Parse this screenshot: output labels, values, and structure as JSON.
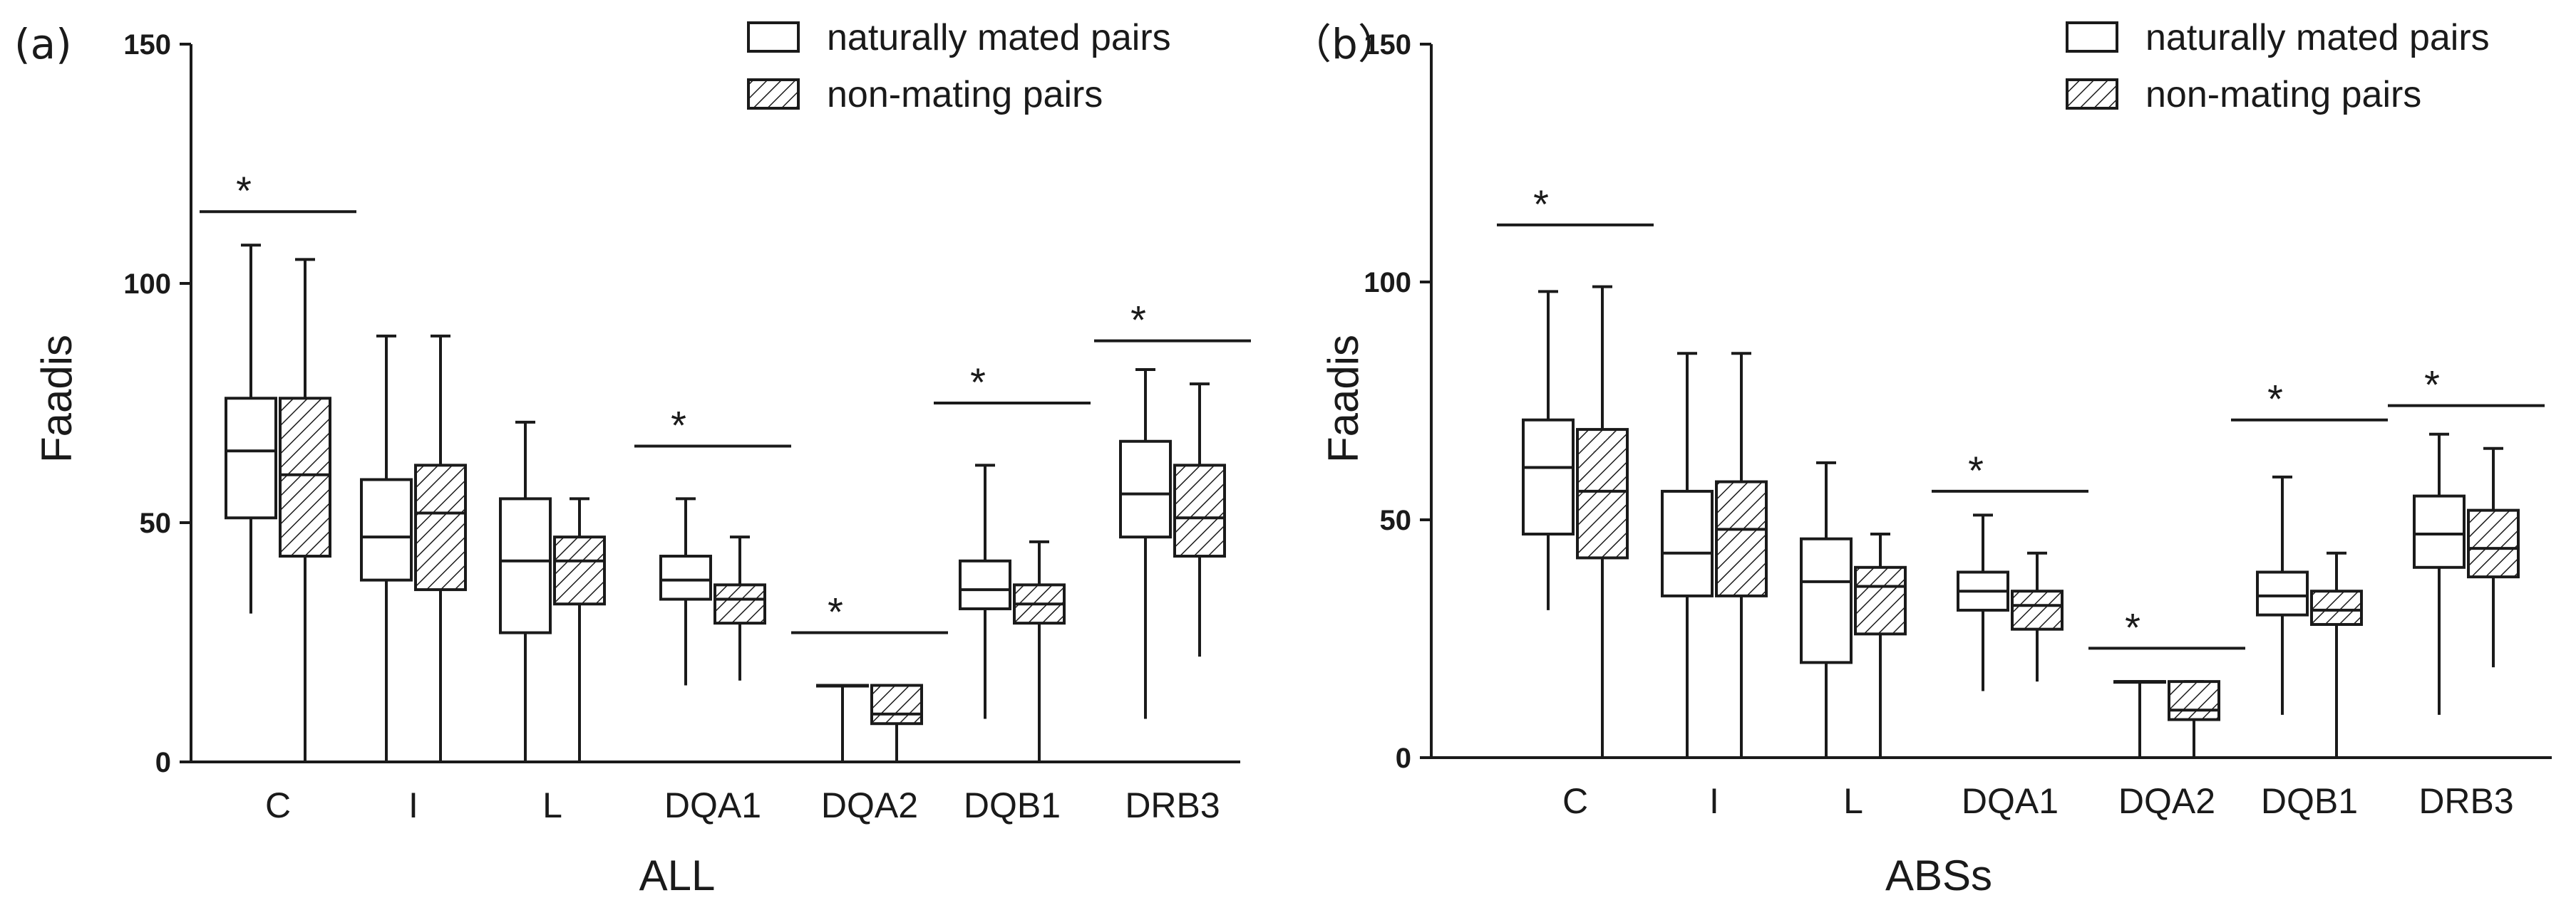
{
  "chart_data": [
    {
      "type": "boxplot",
      "panel_label": "(a)",
      "xlabel": "ALL",
      "ylabel": "Faadis",
      "ylim": [
        0,
        150
      ],
      "yticks": [
        0,
        50,
        100,
        150
      ],
      "categories": [
        "C",
        "I",
        "L",
        "DQA1",
        "DQA2",
        "DQB1",
        "DRB3"
      ],
      "legend": [
        "naturally mated pairs",
        "non-mating pairs"
      ],
      "significance": {
        "label": "*",
        "categories": [
          "C",
          "DQA1",
          "DQA2",
          "DQB1",
          "DRB3"
        ],
        "heights": [
          115,
          66,
          27,
          75,
          88
        ]
      },
      "series": [
        {
          "name": "naturally mated pairs",
          "pattern": "open",
          "boxes": [
            {
              "min": 31,
              "q1": 51,
              "median": 65,
              "q3": 76,
              "max": 108
            },
            {
              "min": 0,
              "q1": 38,
              "median": 47,
              "q3": 59,
              "max": 89
            },
            {
              "min": 0,
              "q1": 27,
              "median": 42,
              "q3": 55,
              "max": 71
            },
            {
              "min": 16,
              "q1": 34,
              "median": 38,
              "q3": 43,
              "max": 55
            },
            {
              "min": 0,
              "q1": 16,
              "median": 16,
              "q3": 16,
              "max": 16
            },
            {
              "min": 9,
              "q1": 32,
              "median": 36,
              "q3": 42,
              "max": 62
            },
            {
              "min": 9,
              "q1": 47,
              "median": 56,
              "q3": 67,
              "max": 82
            }
          ]
        },
        {
          "name": "non-mating pairs",
          "pattern": "hatched",
          "boxes": [
            {
              "min": 0,
              "q1": 43,
              "median": 60,
              "q3": 76,
              "max": 105
            },
            {
              "min": 0,
              "q1": 36,
              "median": 52,
              "q3": 62,
              "max": 89
            },
            {
              "min": 0,
              "q1": 33,
              "median": 42,
              "q3": 47,
              "max": 55
            },
            {
              "min": 17,
              "q1": 29,
              "median": 34,
              "q3": 37,
              "max": 47
            },
            {
              "min": 0,
              "q1": 8,
              "median": 10,
              "q3": 16,
              "max": 16
            },
            {
              "min": 0,
              "q1": 29,
              "median": 33,
              "q3": 37,
              "max": 46
            },
            {
              "min": 22,
              "q1": 43,
              "median": 51,
              "q3": 62,
              "max": 79
            }
          ]
        }
      ]
    },
    {
      "type": "boxplot",
      "panel_label": "（b）",
      "xlabel": "ABSs",
      "ylabel": "Faadis",
      "ylim": [
        0,
        150
      ],
      "yticks": [
        0,
        50,
        100,
        150
      ],
      "categories": [
        "C",
        "I",
        "L",
        "DQA1",
        "DQA2",
        "DQB1",
        "DRB3"
      ],
      "legend": [
        "naturally mated pairs",
        "non-mating pairs"
      ],
      "significance": {
        "label": "*",
        "categories": [
          "C",
          "DQA1",
          "DQA2",
          "DQB1",
          "DRB3"
        ],
        "heights": [
          112,
          56,
          23,
          71,
          74
        ]
      },
      "series": [
        {
          "name": "naturally mated pairs",
          "pattern": "open",
          "boxes": [
            {
              "min": 31,
              "q1": 47,
              "median": 61,
              "q3": 71,
              "max": 98
            },
            {
              "min": 0,
              "q1": 34,
              "median": 43,
              "q3": 56,
              "max": 85
            },
            {
              "min": 0,
              "q1": 20,
              "median": 37,
              "q3": 46,
              "max": 62
            },
            {
              "min": 14,
              "q1": 31,
              "median": 35,
              "q3": 39,
              "max": 51
            },
            {
              "min": 0,
              "q1": 16,
              "median": 16,
              "q3": 16,
              "max": 16
            },
            {
              "min": 9,
              "q1": 30,
              "median": 34,
              "q3": 39,
              "max": 59
            },
            {
              "min": 9,
              "q1": 40,
              "median": 47,
              "q3": 55,
              "max": 68
            }
          ]
        },
        {
          "name": "non-mating pairs",
          "pattern": "hatched",
          "boxes": [
            {
              "min": 0,
              "q1": 42,
              "median": 56,
              "q3": 69,
              "max": 99
            },
            {
              "min": 0,
              "q1": 34,
              "median": 48,
              "q3": 58,
              "max": 85
            },
            {
              "min": 0,
              "q1": 26,
              "median": 36,
              "q3": 40,
              "max": 47
            },
            {
              "min": 16,
              "q1": 27,
              "median": 32,
              "q3": 35,
              "max": 43
            },
            {
              "min": 0,
              "q1": 8,
              "median": 10,
              "q3": 16,
              "max": 16
            },
            {
              "min": 0,
              "q1": 28,
              "median": 31,
              "q3": 35,
              "max": 43
            },
            {
              "min": 19,
              "q1": 38,
              "median": 44,
              "q3": 52,
              "max": 65
            }
          ]
        }
      ]
    }
  ]
}
